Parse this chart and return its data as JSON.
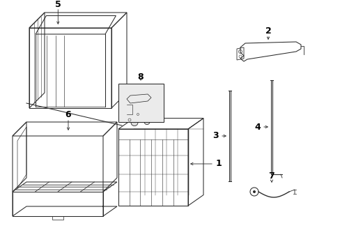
{
  "background_color": "#ffffff",
  "line_color": "#2a2a2a",
  "label_color": "#000000",
  "fig_width": 4.89,
  "fig_height": 3.6,
  "dpi": 100,
  "lw": 0.75,
  "fontsize": 8
}
